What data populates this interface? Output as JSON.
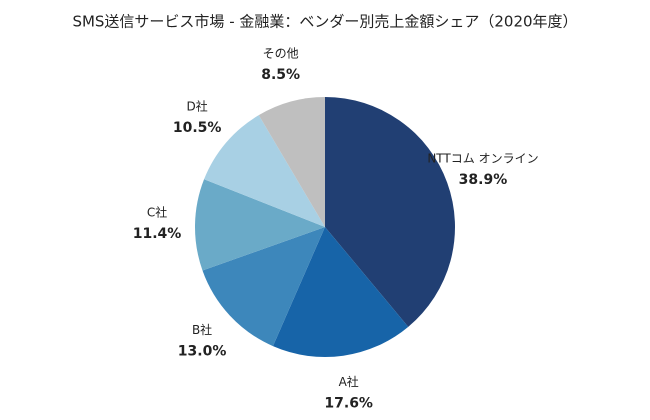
{
  "chart_data": {
    "type": "pie",
    "title": "SMS送信サービス市場 - 金融業：ベンダー別売上金額シェア（2020年度）",
    "categories": [
      "NTTコム オンライン",
      "A社",
      "B社",
      "C社",
      "D社",
      "その他"
    ],
    "values": [
      38.9,
      17.6,
      13.0,
      11.4,
      10.5,
      8.5
    ],
    "value_labels": [
      "38.9%",
      "17.6%",
      "13.0%",
      "11.4%",
      "10.5%",
      "8.5%"
    ],
    "colors": [
      "#213f73",
      "#1764a8",
      "#3d87bb",
      "#6aaac8",
      "#a8d0e4",
      "#bfbfbf"
    ]
  }
}
